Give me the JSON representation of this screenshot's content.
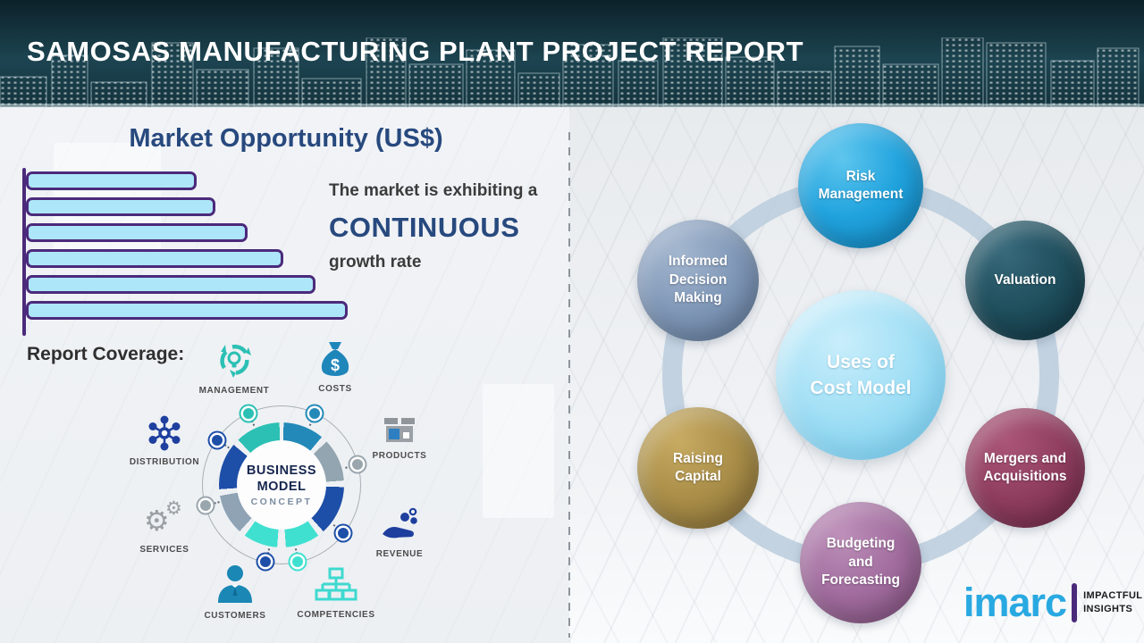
{
  "header": {
    "title": "SAMOSAS MANUFACTURING PLANT PROJECT REPORT"
  },
  "left": {
    "market_title": "Market Opportunity (US$)",
    "growth_line1": "The market is exhibiting a",
    "growth_line2": "CONTINUOUS",
    "growth_line3": "growth rate",
    "report_coverage_label": "Report Coverage:",
    "coverage_items": [
      {
        "label": "MANAGEMENT",
        "icon": "management-recycle-bulb-icon"
      },
      {
        "label": "COSTS",
        "icon": "money-bag-icon"
      },
      {
        "label": "DISTRIBUTION",
        "icon": "network-hub-icon"
      },
      {
        "label": "PRODUCTS",
        "icon": "package-box-icon"
      },
      {
        "label": "SERVICES",
        "icon": "gears-icon"
      },
      {
        "label": "REVENUE",
        "icon": "hand-coins-icon"
      },
      {
        "label": "CUSTOMERS",
        "icon": "person-icon"
      },
      {
        "label": "COMPETENCIES",
        "icon": "org-chart-icon"
      }
    ],
    "business_model": {
      "line1": "BUSINESS",
      "line2": "MODEL",
      "line3": "CONCEPT"
    }
  },
  "chart_data": {
    "type": "bar",
    "orientation": "horizontal",
    "title": "Market Opportunity (US$)",
    "values": [
      53,
      59,
      69,
      80,
      90,
      100
    ],
    "value_scale": "relative-percent (no axis numbers shown in image)",
    "bar_count": 6,
    "bar_fill": "#aee6f9",
    "bar_border": "#4b2a7b",
    "annotation": "The market is exhibiting a CONTINUOUS growth rate",
    "axis_labels_shown": false,
    "grid": false,
    "legend": false
  },
  "right": {
    "center_line1": "Uses of",
    "center_line2": "Cost Model",
    "items": [
      {
        "label": "Risk Management",
        "color": "#21a3de"
      },
      {
        "label": "Valuation",
        "color": "#1d4b59"
      },
      {
        "label": "Informed Decision Making",
        "color": "#7e96b6"
      },
      {
        "label": "Mergers and Acquisitions",
        "color": "#8e3c5e"
      },
      {
        "label": "Raising Capital",
        "color": "#a78c47"
      },
      {
        "label": "Budgeting and Forecasting",
        "color": "#a06b9d"
      }
    ]
  },
  "logo": {
    "name": "imarc",
    "tagline_line1": "IMPACTFUL",
    "tagline_line2": "INSIGHTS"
  },
  "palette": {
    "header_bg": "#16353f",
    "heading_blue": "#27497e",
    "imarc_blue": "#29a9e1",
    "connector_ring": "#bbccdd",
    "ring_segments": [
      "#2389b8",
      "#92a5b0",
      "#1d4fa8",
      "#3fe0d0",
      "#3fe0d0",
      "#8fa3b5",
      "#1d4fa8",
      "#2cc0b4"
    ]
  }
}
